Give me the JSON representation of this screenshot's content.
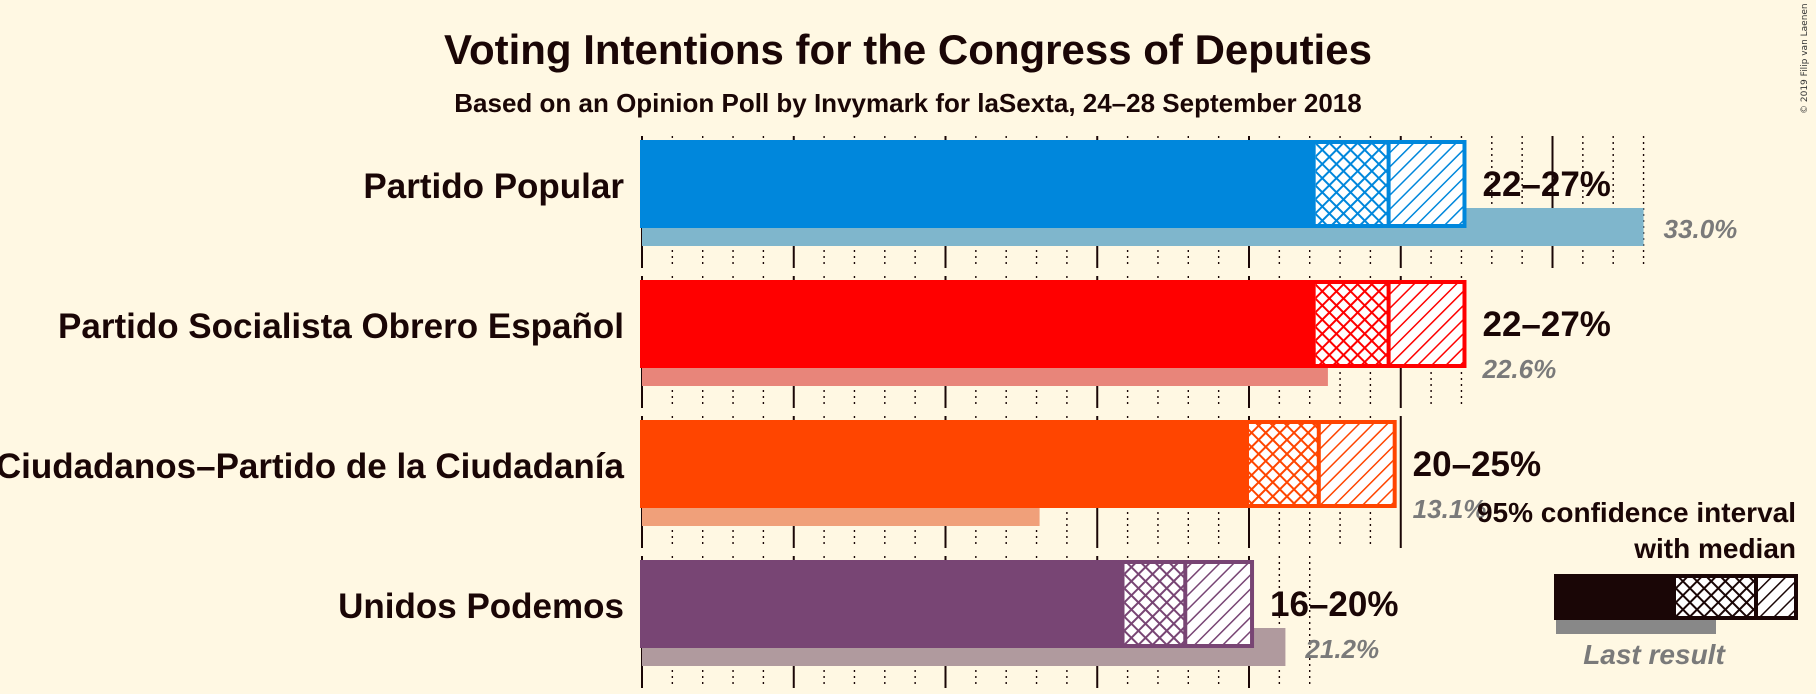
{
  "chart_data": {
    "type": "bar",
    "title": "Voting Intentions for the Congress of Deputies",
    "subtitle": "Based on an Opinion Poll by Invymark for laSexta, 24–28 September 2018",
    "xlim": [
      0,
      35
    ],
    "series": [
      {
        "name": "Partido Popular",
        "color": "#0087DC",
        "last_color": "#7FB6CC",
        "ci_low": 22.2,
        "median": 24.6,
        "ci_high": 27.1,
        "range_label": "22–27%",
        "last_result": 33.0,
        "last_label": "33.0%"
      },
      {
        "name": "Partido Socialista Obrero Español",
        "color": "#FF0000",
        "last_color": "#E8857A",
        "ci_low": 22.2,
        "median": 24.6,
        "ci_high": 27.1,
        "range_label": "22–27%",
        "last_result": 22.6,
        "last_label": "22.6%"
      },
      {
        "name": "Ciudadanos–Partido de la Ciudadanía",
        "color": "#FF4500",
        "last_color": "#F0A07A",
        "ci_low": 20.0,
        "median": 22.3,
        "ci_high": 24.8,
        "range_label": "20–25%",
        "last_result": 13.1,
        "last_label": "13.1%"
      },
      {
        "name": "Unidos Podemos",
        "color": "#784574",
        "last_color": "#B09A9E",
        "ci_low": 15.9,
        "median": 17.9,
        "ci_high": 20.1,
        "range_label": "16–20%",
        "last_result": 21.2,
        "last_label": "21.2%"
      }
    ],
    "legend": {
      "title_line1": "95% confidence interval",
      "title_line2": "with median",
      "last_result_label": "Last result",
      "placement": "bottom-right"
    }
  },
  "copyright": "© 2019 Filip van Laenen"
}
